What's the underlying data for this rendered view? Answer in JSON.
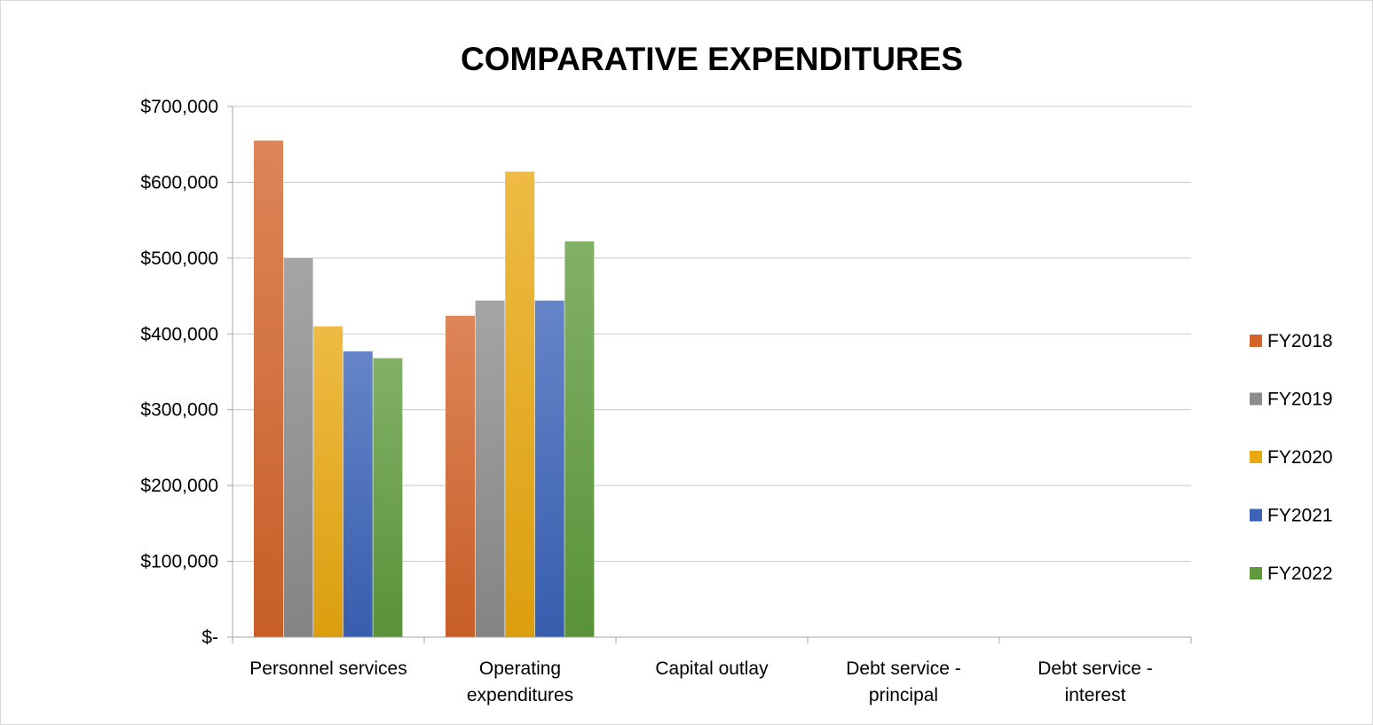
{
  "chart_data": {
    "type": "bar",
    "title": "COMPARATIVE EXPENDITURES",
    "xlabel": "",
    "ylabel": "",
    "categories": [
      [
        "Personnel services"
      ],
      [
        "Operating",
        "expenditures"
      ],
      [
        "Capital outlay"
      ],
      [
        "Debt service -",
        "principal"
      ],
      [
        "Debt service -",
        "interest"
      ]
    ],
    "series": [
      {
        "name": "FY2018",
        "color": "#d4642a",
        "values": [
          655000,
          424000,
          0,
          0,
          0
        ]
      },
      {
        "name": "FY2019",
        "color": "#8c8c8c",
        "values": [
          500000,
          444000,
          0,
          0,
          0
        ]
      },
      {
        "name": "FY2020",
        "color": "#e9a80f",
        "values": [
          410000,
          614000,
          0,
          0,
          0
        ]
      },
      {
        "name": "FY2021",
        "color": "#3b63b8",
        "values": [
          377000,
          444000,
          0,
          0,
          0
        ]
      },
      {
        "name": "FY2022",
        "color": "#5f9b3c",
        "values": [
          368000,
          522000,
          0,
          0,
          0
        ]
      }
    ],
    "ylim": [
      0,
      700000
    ],
    "yticks": [
      0,
      100000,
      200000,
      300000,
      400000,
      500000,
      600000,
      700000
    ],
    "ytick_labels": [
      "$-",
      "$100,000",
      "$200,000",
      "$300,000",
      "$400,000",
      "$500,000",
      "$600,000",
      "$700,000"
    ],
    "grid": true,
    "legend_position": "right"
  }
}
